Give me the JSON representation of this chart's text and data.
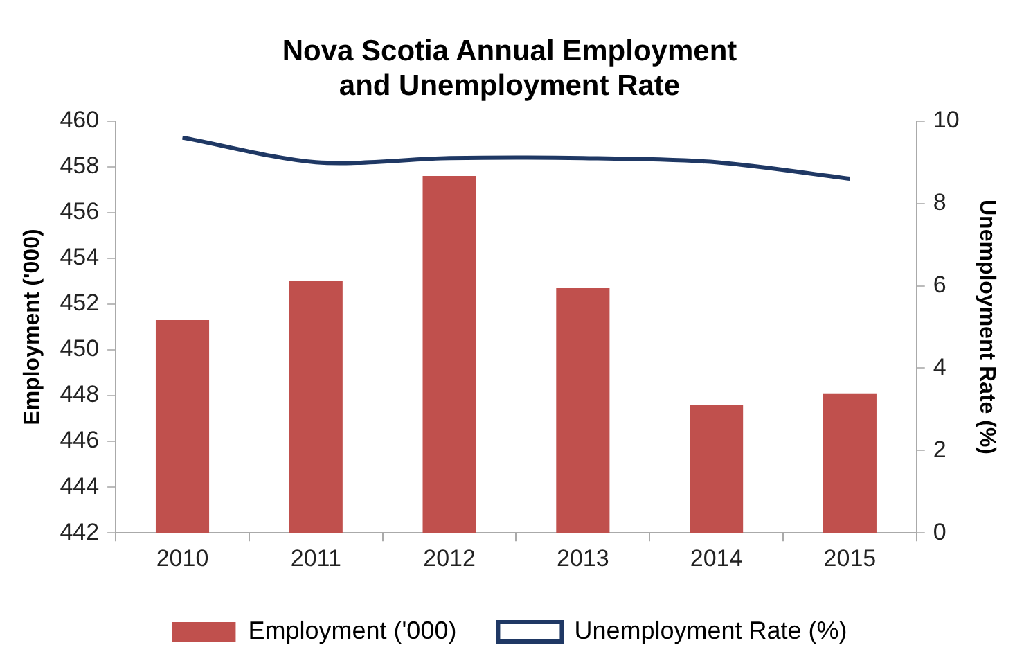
{
  "chart_data": {
    "type": "bar",
    "title": "Nova Scotia Annual Employment\nand Unemployment Rate",
    "ylabel": "Employment ('000)",
    "y2label": "Unemployment Rate (%)",
    "categories": [
      "2010",
      "2011",
      "2012",
      "2013",
      "2014",
      "2015"
    ],
    "series": [
      {
        "name": "Employment ('000)",
        "color": "#c0504d",
        "values": [
          451.3,
          453.0,
          457.6,
          452.7,
          447.6,
          448.1
        ]
      },
      {
        "name": "Unemployment Rate (%)",
        "type": "line",
        "axis": "y2",
        "color": "#1f3864",
        "values": [
          9.6,
          9.0,
          9.1,
          9.1,
          9.0,
          8.6
        ]
      }
    ],
    "ylim": [
      442,
      460
    ],
    "yticks": [
      442,
      444,
      446,
      448,
      450,
      452,
      454,
      456,
      458,
      460
    ],
    "y2lim": [
      0,
      10
    ],
    "y2ticks": [
      0,
      2,
      4,
      6,
      8,
      10
    ],
    "grid": false,
    "legend": "bottom",
    "marker": "none"
  }
}
